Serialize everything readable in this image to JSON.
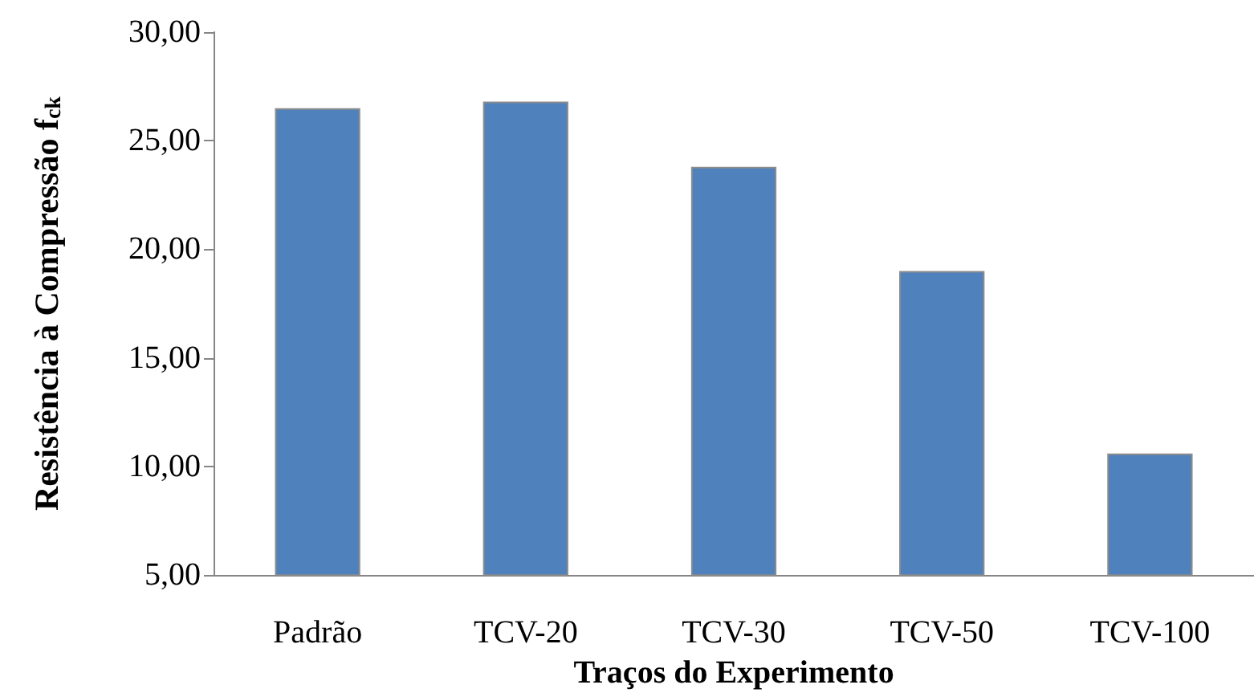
{
  "chart_data": {
    "type": "bar",
    "xlabel": "Traços do Experimento",
    "ylabel": "Resistência à Compressão f$_{ck}$",
    "categories": [
      "Padrão",
      "TCV-20",
      "TCV-30",
      "TCV-50",
      "TCV-100"
    ],
    "values": [
      26.5,
      26.8,
      23.8,
      19.0,
      10.6
    ],
    "color": "#4f81bd",
    "ylim": [
      5,
      30
    ],
    "yticks": [
      {
        "value": 5,
        "label": "5,00"
      },
      {
        "value": 10,
        "label": "10,00"
      },
      {
        "value": 15,
        "label": "15,00"
      },
      {
        "value": 20,
        "label": "20,00"
      },
      {
        "value": 25,
        "label": "25,00"
      },
      {
        "value": 30,
        "label": "30,00"
      }
    ],
    "grid": false
  }
}
